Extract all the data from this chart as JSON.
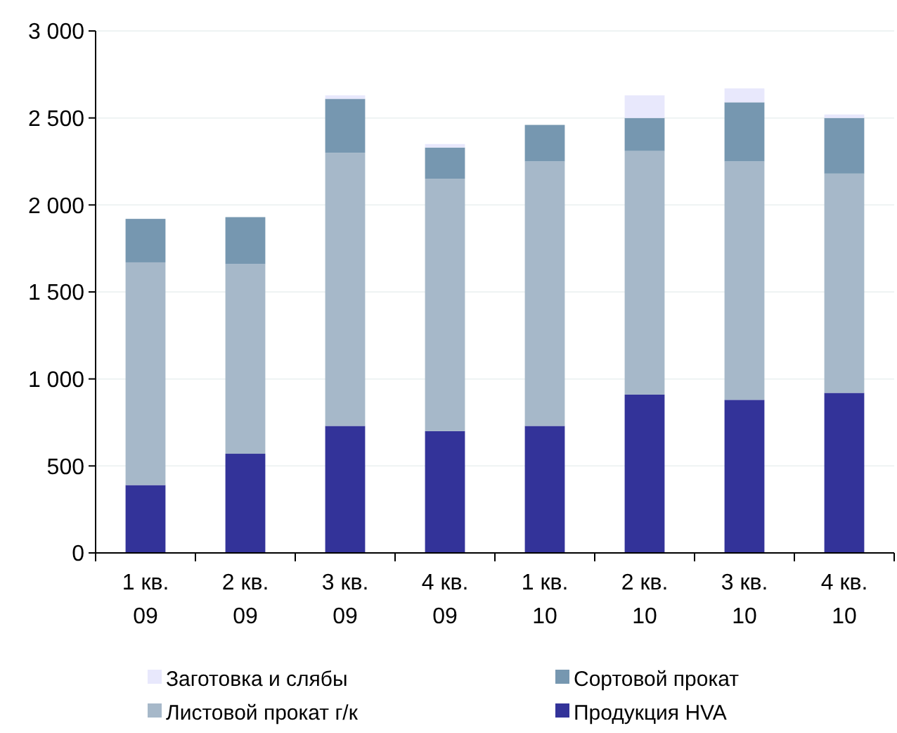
{
  "chart_data": {
    "type": "bar",
    "stacked": true,
    "categories": [
      "1 кв.\n09",
      "2 кв.\n09",
      "3 кв.\n09",
      "4 кв.\n09",
      "1 кв.\n10",
      "2 кв.\n10",
      "3 кв.\n10",
      "4 кв.\n10"
    ],
    "series": [
      {
        "name": "Продукция HVA",
        "color": "#333399",
        "values": [
          390,
          570,
          730,
          700,
          730,
          910,
          880,
          920
        ]
      },
      {
        "name": "Листовой прокат г/к",
        "color": "#a6b8c9",
        "values": [
          1280,
          1090,
          1570,
          1450,
          1520,
          1400,
          1370,
          1260
        ]
      },
      {
        "name": "Сортовой прокат",
        "color": "#7697b0",
        "values": [
          250,
          270,
          310,
          180,
          210,
          190,
          340,
          320
        ]
      },
      {
        "name": "Заготовка и слябы",
        "color": "#e8e8fc",
        "values": [
          0,
          0,
          20,
          20,
          0,
          130,
          80,
          20
        ]
      }
    ],
    "ylim": [
      0,
      3000
    ],
    "yticks": [
      0,
      500,
      {
        "value": 1000,
        "label": "1 000"
      },
      {
        "value": 1500,
        "label": "1 500"
      },
      {
        "value": 2000,
        "label": "2 000"
      },
      {
        "value": 2500,
        "label": "2 500"
      },
      {
        "value": 3000,
        "label": "3 000"
      }
    ],
    "grid": "y",
    "legend": "bottom"
  }
}
